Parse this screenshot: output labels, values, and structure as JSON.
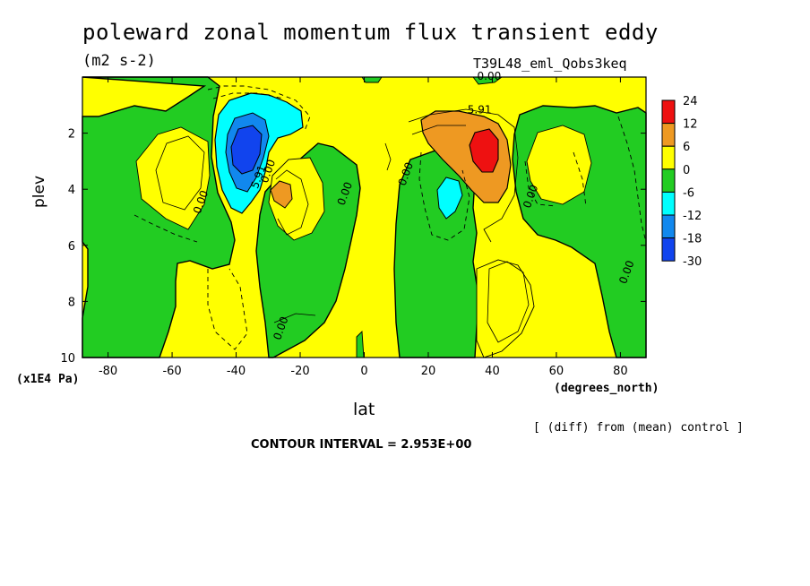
{
  "header": {
    "title": "poleward zonal momentum flux transient eddy",
    "units": "(m2 s-2)",
    "run_id": "T39L48_eml_Qobs3keq"
  },
  "footer": {
    "x_label": "lat",
    "x_units": "(degrees_north)",
    "y_units": "(x1E4 Pa)",
    "diff_note": "[ (diff) from (mean) control ]",
    "contour_interval": "CONTOUR INTERVAL = 2.953E+00"
  },
  "colors": {
    "red": "#ee1111",
    "orange": "#ee9922",
    "yellow": "#ffff00",
    "green": "#22cc22",
    "cyan": "#00ffff",
    "blue_mid": "#1188ee",
    "blue_dark": "#1144ee"
  },
  "chart_data": {
    "type": "contour",
    "title": "poleward zonal momentum flux transient eddy",
    "xlabel": "lat",
    "ylabel": "plev",
    "xlim": [
      -88,
      88
    ],
    "ylim": [
      10,
      0
    ],
    "x_ticks": [
      "-80",
      "-60",
      "-40",
      "-20",
      "0",
      "20",
      "40",
      "60",
      "80"
    ],
    "y_ticks": [
      "2",
      "4",
      "6",
      "8",
      "10"
    ],
    "legend": {
      "placement": "right",
      "levels": [
        "24",
        "12",
        "6",
        "0",
        "-6",
        "-12",
        "-18",
        "-30"
      ],
      "colors": [
        "#ee1111",
        "#ee9922",
        "#ffff00",
        "#22cc22",
        "#00ffff",
        "#1188ee",
        "#1144ee"
      ]
    },
    "contour_labels": [
      {
        "text": "0.00",
        "x": 39,
        "y": 0.1
      },
      {
        "text": "5.91",
        "x": 36,
        "y": 1.3
      },
      {
        "text": "0.00",
        "x": 14,
        "y": 3.5
      },
      {
        "text": "0.00",
        "x": -5,
        "y": 4.2
      },
      {
        "text": "0.00",
        "x": -50,
        "y": 4.5
      },
      {
        "text": "5.91",
        "x": -32,
        "y": 3.6
      },
      {
        "text": "0.00",
        "x": -29,
        "y": 3.4
      },
      {
        "text": "0.00",
        "x": 53,
        "y": 4.3
      },
      {
        "text": "0.00",
        "x": 83,
        "y": 7.0
      },
      {
        "text": "0.00",
        "x": -25,
        "y": 9.0
      }
    ],
    "extrema": [
      {
        "sign": "negative",
        "x": -37,
        "y": 2.6,
        "approx_value": -30
      },
      {
        "sign": "positive",
        "x": 38,
        "y": 2.6,
        "approx_value": 24
      },
      {
        "sign": "positive",
        "x": -26,
        "y": 4.2,
        "approx_value": 8
      },
      {
        "sign": "negative",
        "x": 27,
        "y": 4.2,
        "approx_value": -10
      }
    ]
  }
}
